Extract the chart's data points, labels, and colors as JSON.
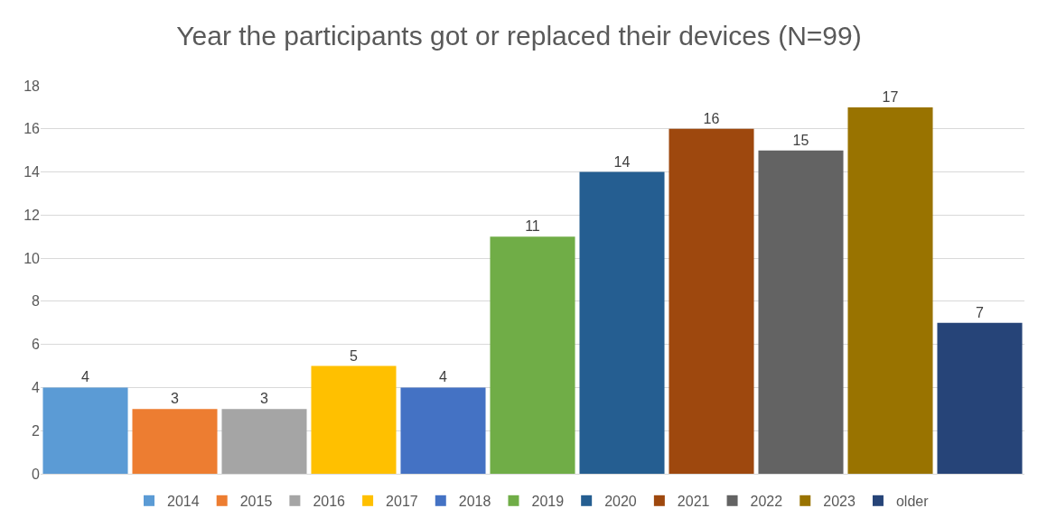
{
  "chart_data": {
    "type": "bar",
    "title": "Year the participants got or replaced their devices (N=99)",
    "categories": [
      null,
      null,
      null,
      null,
      null,
      null,
      null,
      null,
      null,
      null,
      null
    ],
    "series": [
      {
        "name": "2014",
        "color": "#5b9bd5",
        "values": [
          4,
          null,
          null,
          null,
          null,
          null,
          null,
          null,
          null,
          null,
          null
        ]
      },
      {
        "name": "2015",
        "color": "#ed7d31",
        "values": [
          null,
          3,
          null,
          null,
          null,
          null,
          null,
          null,
          null,
          null,
          null
        ]
      },
      {
        "name": "2016",
        "color": "#a5a5a5",
        "values": [
          null,
          null,
          3,
          null,
          null,
          null,
          null,
          null,
          null,
          null,
          null
        ]
      },
      {
        "name": "2017",
        "color": "#ffc000",
        "values": [
          null,
          null,
          null,
          5,
          null,
          null,
          null,
          null,
          null,
          null,
          null
        ]
      },
      {
        "name": "2018",
        "color": "#4472c4",
        "values": [
          null,
          null,
          null,
          null,
          4,
          null,
          null,
          null,
          null,
          null,
          null
        ]
      },
      {
        "name": "2019",
        "color": "#70ad47",
        "values": [
          null,
          null,
          null,
          null,
          null,
          11,
          null,
          null,
          null,
          null,
          null
        ]
      },
      {
        "name": "2020",
        "color": "#255e91",
        "values": [
          null,
          null,
          null,
          null,
          null,
          null,
          14,
          null,
          null,
          null,
          null
        ]
      },
      {
        "name": "2021",
        "color": "#9e480e",
        "values": [
          null,
          null,
          null,
          null,
          null,
          null,
          null,
          16,
          null,
          null,
          null
        ]
      },
      {
        "name": "2022",
        "color": "#636363",
        "values": [
          null,
          null,
          null,
          null,
          null,
          null,
          null,
          null,
          15,
          null,
          null
        ]
      },
      {
        "name": "2023",
        "color": "#997300",
        "values": [
          null,
          null,
          null,
          null,
          null,
          null,
          null,
          null,
          null,
          17,
          null
        ]
      },
      {
        "name": "older",
        "color": "#264478",
        "values": [
          null,
          null,
          null,
          null,
          null,
          null,
          null,
          null,
          null,
          null,
          7
        ]
      }
    ],
    "ylim": [
      0,
      18
    ],
    "yticks": [
      0,
      2,
      4,
      6,
      8,
      10,
      12,
      14,
      16,
      18
    ],
    "grid": "y",
    "data_labels": true,
    "legend": "bottom"
  }
}
